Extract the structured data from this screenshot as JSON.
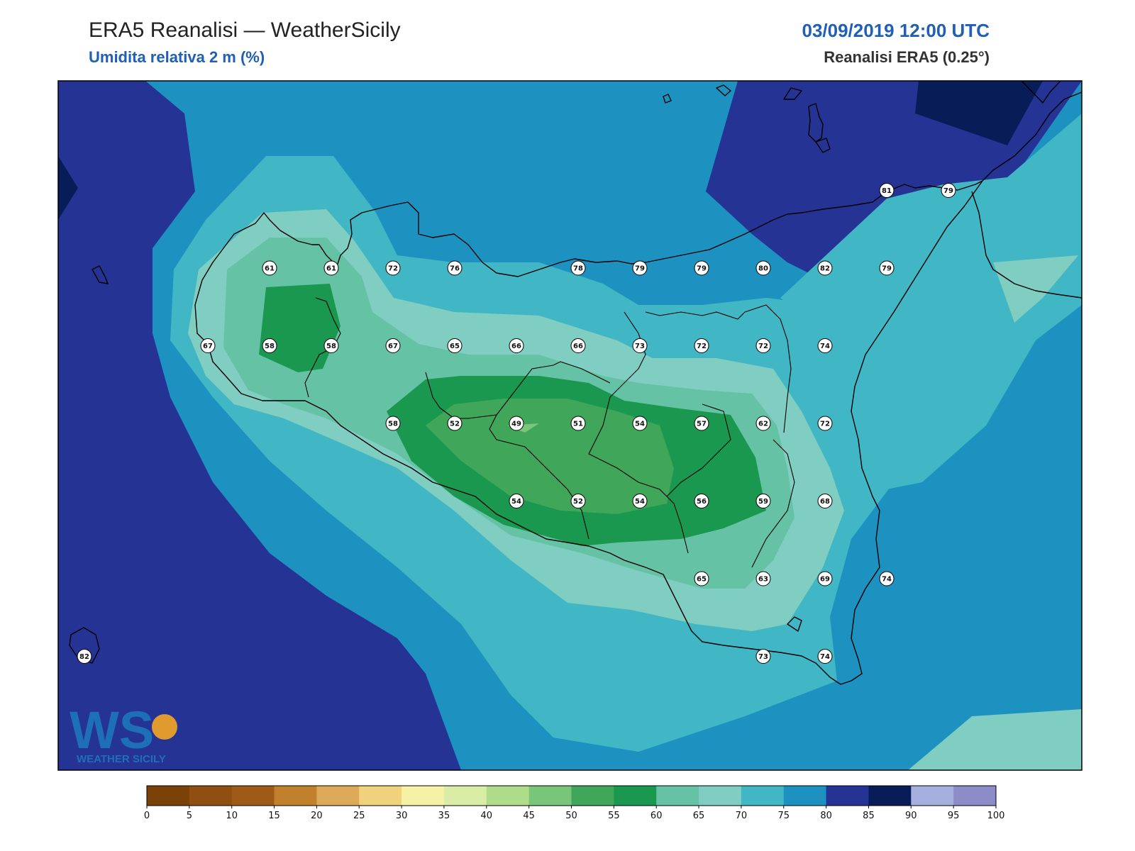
{
  "header": {
    "title": "ERA5 Reanalisi — WeatherSicily",
    "subtitle": "Umidita relativa 2 m (%)",
    "datetime": "03/09/2019 12:00 UTC",
    "source": "Reanalisi ERA5 (0.25°)"
  },
  "logo": {
    "letters": "WS",
    "text": "WEATHER SICILY"
  },
  "colorbar": {
    "ticks": [
      "0",
      "5",
      "10",
      "15",
      "20",
      "25",
      "30",
      "35",
      "40",
      "45",
      "50",
      "55",
      "60",
      "65",
      "70",
      "75",
      "80",
      "85",
      "90",
      "95",
      "100"
    ],
    "colors": [
      "#7b4208",
      "#8f4f10",
      "#a05a18",
      "#c0802c",
      "#dcaa58",
      "#f0d27c",
      "#f5f2a6",
      "#d9eda6",
      "#aedc8a",
      "#79c57a",
      "#3fa65a",
      "#1a9850",
      "#66c2a5",
      "#80cdc1",
      "#41b6c4",
      "#1d91c0",
      "#253494",
      "#081d58",
      "#a6b0de",
      "#8c8cc8"
    ]
  },
  "colors": {
    "rh_55_60": "#1a9850",
    "rh_60_65": "#66c2a5",
    "rh_65_70": "#80cdc1",
    "rh_70_75": "#41b6c4",
    "rh_75_80": "#1d91c0",
    "rh_80_85": "#253494",
    "rh_85_90": "#081d58"
  },
  "station_values": [
    {
      "lon": 12.5,
      "lat": 38.25,
      "value": "61"
    },
    {
      "lon": 12.75,
      "lat": 38.25,
      "value": "61"
    },
    {
      "lon": 13.0,
      "lat": 38.25,
      "value": "72"
    },
    {
      "lon": 13.25,
      "lat": 38.25,
      "value": "76"
    },
    {
      "lon": 13.75,
      "lat": 38.25,
      "value": "78"
    },
    {
      "lon": 14.0,
      "lat": 38.25,
      "value": "79"
    },
    {
      "lon": 14.25,
      "lat": 38.25,
      "value": "79"
    },
    {
      "lon": 14.5,
      "lat": 38.25,
      "value": "80"
    },
    {
      "lon": 14.75,
      "lat": 38.25,
      "value": "82"
    },
    {
      "lon": 15.0,
      "lat": 38.25,
      "value": "79"
    },
    {
      "lon": 15.0,
      "lat": 38.5,
      "value": "81"
    },
    {
      "lon": 15.25,
      "lat": 38.5,
      "value": "79"
    },
    {
      "lon": 12.25,
      "lat": 38.0,
      "value": "67"
    },
    {
      "lon": 12.5,
      "lat": 38.0,
      "value": "58"
    },
    {
      "lon": 12.75,
      "lat": 38.0,
      "value": "58"
    },
    {
      "lon": 13.0,
      "lat": 38.0,
      "value": "67"
    },
    {
      "lon": 13.25,
      "lat": 38.0,
      "value": "65"
    },
    {
      "lon": 13.5,
      "lat": 38.0,
      "value": "66"
    },
    {
      "lon": 13.75,
      "lat": 38.0,
      "value": "66"
    },
    {
      "lon": 14.0,
      "lat": 38.0,
      "value": "73"
    },
    {
      "lon": 14.25,
      "lat": 38.0,
      "value": "72"
    },
    {
      "lon": 14.5,
      "lat": 38.0,
      "value": "72"
    },
    {
      "lon": 14.75,
      "lat": 38.0,
      "value": "74"
    },
    {
      "lon": 13.0,
      "lat": 37.75,
      "value": "58"
    },
    {
      "lon": 13.25,
      "lat": 37.75,
      "value": "52"
    },
    {
      "lon": 13.5,
      "lat": 37.75,
      "value": "49"
    },
    {
      "lon": 13.75,
      "lat": 37.75,
      "value": "51"
    },
    {
      "lon": 14.0,
      "lat": 37.75,
      "value": "54"
    },
    {
      "lon": 14.25,
      "lat": 37.75,
      "value": "57"
    },
    {
      "lon": 14.5,
      "lat": 37.75,
      "value": "62"
    },
    {
      "lon": 14.75,
      "lat": 37.75,
      "value": "72"
    },
    {
      "lon": 13.5,
      "lat": 37.5,
      "value": "54"
    },
    {
      "lon": 13.75,
      "lat": 37.5,
      "value": "52"
    },
    {
      "lon": 14.0,
      "lat": 37.5,
      "value": "54"
    },
    {
      "lon": 14.25,
      "lat": 37.5,
      "value": "56"
    },
    {
      "lon": 14.5,
      "lat": 37.5,
      "value": "59"
    },
    {
      "lon": 14.75,
      "lat": 37.5,
      "value": "68"
    },
    {
      "lon": 14.25,
      "lat": 37.25,
      "value": "65"
    },
    {
      "lon": 14.5,
      "lat": 37.25,
      "value": "63"
    },
    {
      "lon": 14.75,
      "lat": 37.25,
      "value": "69"
    },
    {
      "lon": 15.0,
      "lat": 37.25,
      "value": "74"
    },
    {
      "lon": 14.5,
      "lat": 37.0,
      "value": "73"
    },
    {
      "lon": 14.75,
      "lat": 37.0,
      "value": "74"
    },
    {
      "lon": 11.75,
      "lat": 37.0,
      "value": "82"
    }
  ]
}
